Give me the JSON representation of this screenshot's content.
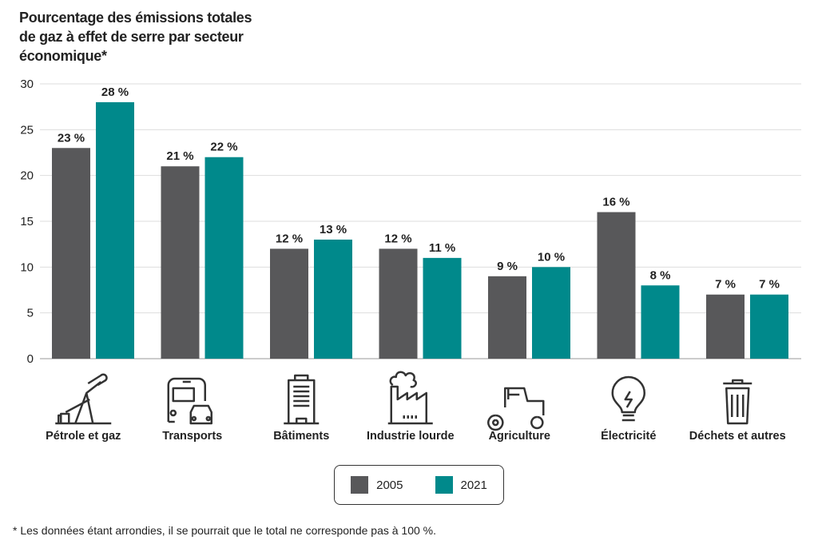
{
  "chart_data": {
    "type": "bar",
    "title": "Pourcentage des émissions totales de gaz à effet de serre par secteur économique*",
    "categories": [
      "Pétrole et gaz",
      "Transports",
      "Bâtiments",
      "Industrie lourde",
      "Agriculture",
      "Électricité",
      "Déchets et autres"
    ],
    "category_icons": [
      "oil-pump-icon",
      "bus-car-icon",
      "building-icon",
      "factory-icon",
      "tractor-icon",
      "lightbulb-icon",
      "trash-can-icon"
    ],
    "series": [
      {
        "name": "2005",
        "color": "#58585a",
        "values": [
          23,
          21,
          12,
          12,
          9,
          16,
          7
        ],
        "labels": [
          "23 %",
          "21 %",
          "12 %",
          "12 %",
          "9 %",
          "16 %",
          "7 %"
        ]
      },
      {
        "name": "2021",
        "color": "#00898b",
        "values": [
          28,
          22,
          13,
          11,
          10,
          8,
          7
        ],
        "labels": [
          "28 %",
          "22 %",
          "13 %",
          "11 %",
          "10 %",
          "8 %",
          "7 %"
        ]
      }
    ],
    "ylim": [
      0,
      30
    ],
    "yticks": [
      "0",
      "5",
      "10",
      "15",
      "20",
      "25",
      "30"
    ],
    "grid": true,
    "legend": "bottom-center",
    "footnote": "* Les données étant arrondies, il se pourrait que le total ne corresponde pas à 100 %."
  }
}
